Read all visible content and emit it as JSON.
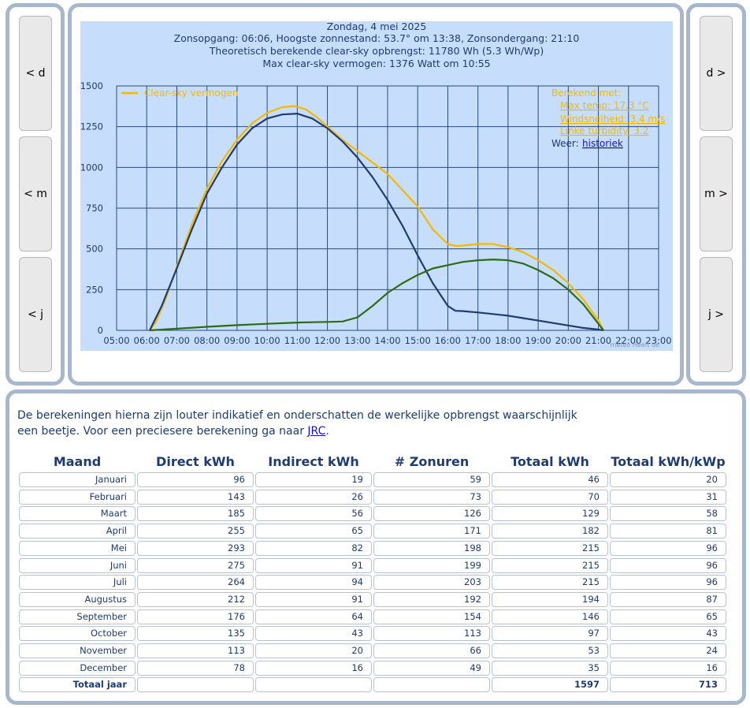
{
  "nav": {
    "left": [
      "< d",
      "< m",
      "< j"
    ],
    "right": [
      "d >",
      "m >",
      "j >"
    ]
  },
  "chart_data": {
    "type": "line",
    "title": "Zondag, 4 mei 2025",
    "subtitle_lines": [
      "Zonsopgang: 06:06, Hoogste zonnestand: 53.7° om 13:38, Zonsondergang: 21:10",
      "Theoretisch berekende clear-sky opbrengst: 11780 Wh (5.3 Wh/Wp)",
      "Max clear-sky vermogen: 1376 Watt om 10:55"
    ],
    "x_ticks": [
      "05:00",
      "06:00",
      "07:00",
      "08:00",
      "09:00",
      "10:00",
      "11:00",
      "12:00",
      "13:00",
      "14:00",
      "15:00",
      "16:00",
      "17:00",
      "18:00",
      "19:00",
      "20:00",
      "21:00",
      "22:00",
      "23:00"
    ],
    "y_ticks": [
      "0",
      "250",
      "500",
      "750",
      "1000",
      "1250",
      "1500"
    ],
    "xlim": [
      5,
      23
    ],
    "ylim": [
      0,
      1500
    ],
    "grid": true,
    "legend": "top-left",
    "colors": {
      "background": "#c6defb",
      "grid": "#2a4a7c",
      "clearsky": "#f5b800",
      "direct": "#1f3b73",
      "indirect": "#2e6b14"
    },
    "series": [
      {
        "name": "Clear-sky vermogen",
        "color": "#f5b800",
        "x": [
          6.1,
          6.3,
          6.6,
          7,
          7.5,
          8,
          8.5,
          9,
          9.5,
          10,
          10.5,
          10.917,
          11.3,
          11.7,
          12,
          12.5,
          13,
          13.5,
          14,
          14.5,
          15,
          15.5,
          16,
          16.25,
          16.5,
          17,
          17.5,
          18,
          18.5,
          19,
          19.5,
          20,
          20.5,
          21,
          21.17
        ],
        "y": [
          0,
          50,
          180,
          390,
          650,
          870,
          1040,
          1170,
          1270,
          1335,
          1370,
          1376,
          1355,
          1300,
          1250,
          1170,
          1100,
          1030,
          960,
          860,
          760,
          620,
          530,
          518,
          520,
          530,
          530,
          510,
          480,
          430,
          370,
          290,
          190,
          60,
          0
        ]
      },
      {
        "name": "",
        "color": "#1f3b73",
        "x": [
          6.1,
          6.5,
          7,
          7.5,
          8,
          8.5,
          9,
          9.5,
          10,
          10.5,
          11,
          11.5,
          12,
          12.5,
          13,
          13.5,
          14,
          14.5,
          15,
          15.5,
          16,
          16.25,
          16.5,
          17,
          17.5,
          18,
          18.5,
          19,
          19.5,
          20,
          20.5,
          21,
          21.17
        ],
        "y": [
          0,
          150,
          380,
          620,
          840,
          1000,
          1140,
          1240,
          1300,
          1325,
          1330,
          1300,
          1240,
          1160,
          1060,
          940,
          800,
          640,
          460,
          290,
          150,
          120,
          118,
          110,
          100,
          90,
          75,
          60,
          45,
          30,
          15,
          5,
          0
        ]
      },
      {
        "name": "",
        "color": "#2e6b14",
        "x": [
          6.1,
          7,
          8,
          9,
          10,
          11,
          12,
          12.5,
          13,
          13.5,
          14,
          14.5,
          15,
          15.5,
          16,
          16.5,
          17,
          17.5,
          18,
          18.5,
          19,
          19.5,
          20,
          20.5,
          21,
          21.17
        ],
        "y": [
          0,
          10,
          22,
          32,
          40,
          48,
          52,
          54,
          80,
          150,
          230,
          290,
          340,
          380,
          400,
          420,
          430,
          435,
          430,
          410,
          370,
          320,
          250,
          160,
          40,
          0
        ]
      }
    ],
    "annotations": {
      "berekend_label": "Berekend met:",
      "items": [
        "Max temp: 17.3 °C",
        "Windsnelheid: 3.4 m/s",
        "Linke turbidity: 3.2"
      ],
      "weer_label": "Weer:",
      "weer_link": "historiek"
    },
    "watermark": "meteo Heeft de"
  },
  "intro": {
    "text": "De berekeningen hierna zijn louter indikatief en onderschatten de werkelijke opbrengst waarschijnlijk een beetje. Voor een preciesere berekening ga naar ",
    "link": "JRC",
    "end": "."
  },
  "table": {
    "headers": [
      "Maand",
      "Direct kWh",
      "Indirect kWh",
      "# Zonuren",
      "Totaal kWh",
      "Totaal kWh/kWp"
    ],
    "rows": [
      [
        "Januari",
        "96",
        "19",
        "59",
        "46",
        "20"
      ],
      [
        "Februari",
        "143",
        "26",
        "73",
        "70",
        "31"
      ],
      [
        "Maart",
        "185",
        "56",
        "126",
        "129",
        "58"
      ],
      [
        "April",
        "255",
        "65",
        "171",
        "182",
        "81"
      ],
      [
        "Mei",
        "293",
        "82",
        "198",
        "215",
        "96"
      ],
      [
        "Juni",
        "275",
        "91",
        "199",
        "215",
        "96"
      ],
      [
        "Juli",
        "264",
        "94",
        "203",
        "215",
        "96"
      ],
      [
        "Augustus",
        "212",
        "91",
        "192",
        "194",
        "87"
      ],
      [
        "September",
        "176",
        "64",
        "154",
        "146",
        "65"
      ],
      [
        "October",
        "135",
        "43",
        "113",
        "97",
        "43"
      ],
      [
        "November",
        "113",
        "20",
        "66",
        "53",
        "24"
      ],
      [
        "December",
        "78",
        "16",
        "49",
        "35",
        "16"
      ]
    ],
    "total": [
      "Totaal jaar",
      "",
      "",
      "",
      "1597",
      "713"
    ]
  }
}
